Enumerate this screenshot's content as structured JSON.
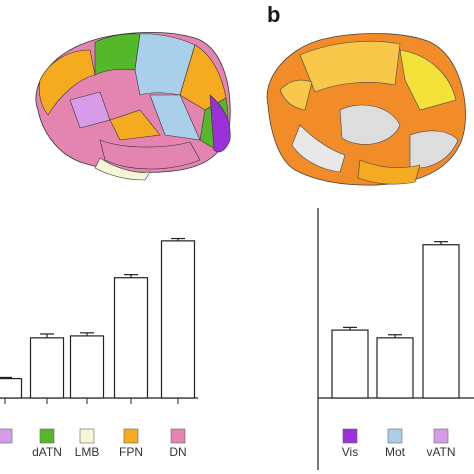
{
  "panel_b_label": "b",
  "colors": {
    "Vis": "#9b30d9",
    "Mot": "#a9cfea",
    "vATN": "#d79be8",
    "dATN": "#55b82a",
    "LMB": "#f4f6d6",
    "FPN": "#f5ab1f",
    "DN": "#e384b1"
  },
  "chart_data": [
    {
      "type": "bar",
      "panel": "a",
      "categories": [
        "vATN",
        "dATN",
        "LMB",
        "FPN",
        "DN"
      ],
      "category_labels": [
        "",
        "dATN",
        "LMB",
        "FPN",
        "DN"
      ],
      "values": [
        0.5,
        1.55,
        1.6,
        3.1,
        4.05
      ],
      "errors": [
        0.03,
        0.1,
        0.08,
        0.08,
        0.06
      ],
      "ylim": [
        0,
        5
      ],
      "legend_placement": "bottom",
      "grid": false
    },
    {
      "type": "bar",
      "panel": "b",
      "categories": [
        "Vis",
        "Mot",
        "vATN"
      ],
      "category_labels": [
        "Vis",
        "Mot",
        "vATN"
      ],
      "values": [
        1.75,
        1.55,
        3.95
      ],
      "errors": [
        0.07,
        0.08,
        0.08
      ],
      "ylim": [
        0,
        5
      ],
      "legend_placement": "bottom",
      "grid": false
    }
  ]
}
